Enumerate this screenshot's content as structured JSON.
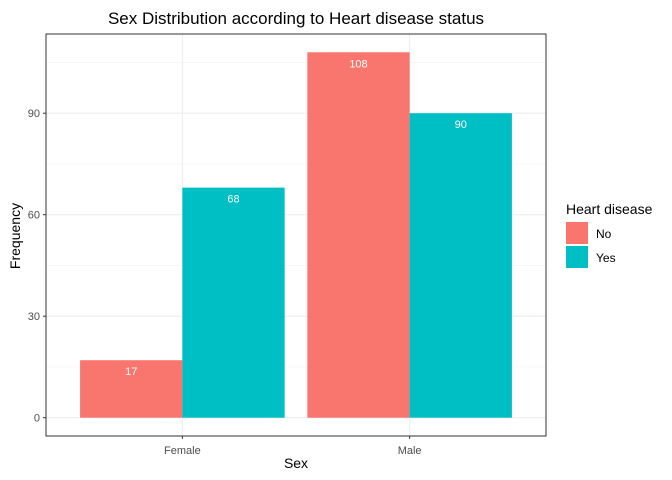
{
  "chart_data": {
    "type": "bar",
    "title": "Sex Distribution according to Heart disease status",
    "xlabel": "Sex",
    "ylabel": "Frequency",
    "categories": [
      "Female",
      "Male"
    ],
    "series": [
      {
        "name": "No",
        "values": [
          17,
          108
        ],
        "color": "#F8766D"
      },
      {
        "name": "Yes",
        "values": [
          68,
          90
        ],
        "color": "#00BFC4"
      }
    ],
    "yticks": [
      0,
      30,
      60,
      90
    ],
    "ylim": [
      -5.4,
      113.4
    ],
    "grid": true,
    "legend": {
      "title": "Heart disease",
      "position": "right"
    }
  }
}
